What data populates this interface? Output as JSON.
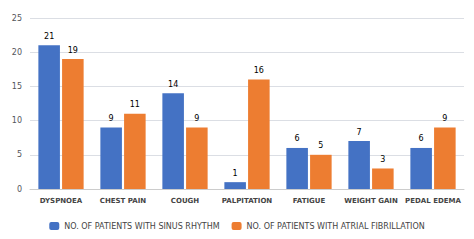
{
  "chart_data": {
    "type": "bar",
    "categories": [
      "DYSPNOEA",
      "CHEST PAIN",
      "COUGH",
      "PALPITATION",
      "FATIGUE",
      "WEIGHT GAIN",
      "PEDAL EDEMA"
    ],
    "series": [
      {
        "name": "NO. OF PATIENTS WITH SINUS RHYTHM",
        "color": "#4472c4",
        "values": [
          21,
          9,
          14,
          1,
          6,
          7,
          6
        ]
      },
      {
        "name": "NO. OF PATIENTS WITH ATRIAL FIBRILLATION",
        "color": "#ed7d31",
        "values": [
          19,
          11,
          9,
          16,
          5,
          3,
          9
        ]
      }
    ],
    "ylim": [
      0,
      25
    ],
    "yticks": [
      0,
      5,
      10,
      15,
      20,
      25
    ],
    "grid": true,
    "legend": "bottom",
    "data_labels": true
  }
}
